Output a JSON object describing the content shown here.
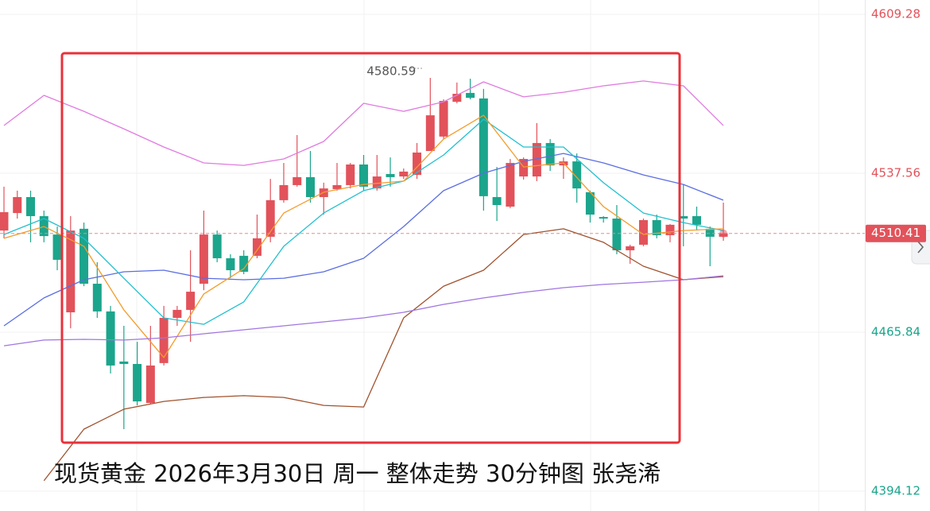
{
  "chart_data": {
    "type": "candlestick",
    "title": "现货黄金 2026年3月30日 周一 整体走势 30分钟图 张尧浠",
    "ylim": [
      4385.15,
      4615.73
    ],
    "yticks": [
      4609.28,
      4537.56,
      4465.84,
      4394.12
    ],
    "grid": true,
    "up_color": "#e2525a",
    "down_color": "#1ba58c",
    "last_price": 4510.41,
    "high_annotation": 4580.59,
    "high_annotation_index": 32,
    "candles": {
      "open": [
        4511.7,
        4519.6,
        4526.8,
        4518.2,
        4509.9,
        4474.8,
        4512.5,
        4487.7,
        4475.2,
        4452.6,
        4451.5,
        4433.9,
        4451.9,
        4472.3,
        4475.9,
        4487.7,
        4509.9,
        4499.2,
        4500.3,
        4500.3,
        4508.9,
        4525.4,
        4532.2,
        4535.8,
        4526.8,
        4530.4,
        4532.2,
        4541.5,
        4530.7,
        4537.2,
        4536.1,
        4536.8,
        4547.6,
        4554.1,
        4569.8,
        4573.8,
        4571.3,
        4526.8,
        4522.5,
        4536.1,
        4536.1,
        4551.2,
        4541.1,
        4542.9,
        4529.0,
        4517.8,
        4517.1,
        4502.8,
        4505.3,
        4516.4,
        4509.6,
        4518.2,
        4518.2,
        4512.5,
        4508.9
      ],
      "high": [
        4531.5,
        4529.7,
        4529.7,
        4520.7,
        4513.5,
        4518.2,
        4515.3,
        4497.4,
        4477.7,
        4468.7,
        4461.5,
        4468.7,
        4477.7,
        4477.7,
        4502.8,
        4520.7,
        4511.7,
        4501.0,
        4502.8,
        4518.9,
        4535.0,
        4542.2,
        4554.8,
        4547.6,
        4533.3,
        4542.2,
        4542.2,
        4545.8,
        4545.8,
        4544.7,
        4539.7,
        4551.2,
        4580.59,
        4570.9,
        4578.5,
        4580.2,
        4575.6,
        4540.4,
        4544.0,
        4544.7,
        4560.2,
        4553.0,
        4544.7,
        4546.5,
        4529.7,
        4518.2,
        4523.2,
        4505.3,
        4517.1,
        4518.9,
        4514.6,
        4532.5,
        4522.5,
        4513.5,
        4524.3
      ],
      "low": [
        4508.2,
        4517.1,
        4506.4,
        4506.4,
        4493.8,
        4467.6,
        4486.6,
        4472.3,
        4447.2,
        4422.1,
        4432.8,
        4433.6,
        4450.8,
        4468.7,
        4461.5,
        4484.8,
        4497.4,
        4490.2,
        4492.0,
        4499.2,
        4506.4,
        4524.3,
        4531.5,
        4524.3,
        4518.9,
        4529.7,
        4530.7,
        4529.7,
        4529.7,
        4531.5,
        4535.0,
        4535.0,
        4547.6,
        4553.0,
        4569.1,
        4570.9,
        4520.7,
        4516.0,
        4521.8,
        4534.7,
        4534.0,
        4538.6,
        4535.0,
        4524.3,
        4515.3,
        4515.3,
        4501.0,
        4496.7,
        4504.6,
        4508.2,
        4506.4,
        4504.6,
        4511.7,
        4495.6,
        4507.1
      ],
      "close": [
        4520.0,
        4526.8,
        4518.2,
        4509.2,
        4498.5,
        4511.7,
        4487.7,
        4475.2,
        4450.8,
        4451.5,
        4434.6,
        4450.8,
        4472.3,
        4475.9,
        4484.1,
        4509.9,
        4499.2,
        4493.8,
        4493.1,
        4508.2,
        4525.4,
        4532.2,
        4535.8,
        4526.8,
        4530.7,
        4532.2,
        4541.5,
        4531.5,
        4536.1,
        4535.8,
        4538.3,
        4546.9,
        4563.7,
        4570.2,
        4573.4,
        4571.6,
        4527.2,
        4523.2,
        4542.2,
        4544.0,
        4551.2,
        4541.1,
        4542.9,
        4530.7,
        4518.9,
        4517.1,
        4502.8,
        4504.6,
        4516.4,
        4509.6,
        4514.3,
        4517.1,
        4514.3,
        4508.9,
        4510.41
      ]
    },
    "line_x": [
      0,
      3,
      6,
      9,
      12,
      15,
      18,
      21,
      24,
      27,
      30,
      33,
      36,
      39,
      42,
      45,
      48,
      51,
      54
    ],
    "lines": [
      {
        "color": "#e07be0",
        "values": [
          4559.1,
          4572.7,
          4565.5,
          4557.6,
          4549.4,
          4542.2,
          4541.1,
          4544.0,
          4551.9,
          4569.1,
          4565.5,
          4569.8,
          4578.8,
          4572.0,
          4574.1,
          4577.0,
          4579.2,
          4577.0,
          4559.1
        ]
      },
      {
        "color": "#a0522d",
        "values": [
          null,
          4398.8,
          4422.1,
          4431.1,
          4434.6,
          4436.4,
          4437.2,
          4436.4,
          4432.8,
          4432.1,
          4472.3,
          4486.6,
          4493.8,
          4509.9,
          4512.5,
          4506.4,
          4495.6,
          4489.5,
          4490.9
        ]
      },
      {
        "color": "#5b6ee1",
        "values": [
          4468.7,
          4481.3,
          4489.5,
          4493.1,
          4493.8,
          4490.2,
          4489.5,
          4490.2,
          4493.1,
          4499.2,
          4513.5,
          4529.7,
          4537.6,
          4542.9,
          4546.5,
          4542.2,
          4536.8,
          4532.5,
          4525.4
        ]
      },
      {
        "color": "#22c0cf",
        "values": [
          4509.9,
          4517.1,
          4508.2,
          4490.2,
          4472.3,
          4469.4,
          4479.5,
          4504.6,
          4519.6,
          4529.7,
          4534.0,
          4545.8,
          4561.9,
          4549.4,
          4549.4,
          4533.3,
          4519.6,
          4515.3,
          4511.7
        ]
      },
      {
        "color": "#f39c2b",
        "values": [
          4508.2,
          4513.5,
          4504.6,
          4475.9,
          4454.4,
          4483.1,
          4494.5,
          4519.6,
          4529.0,
          4532.5,
          4534.0,
          4553.0,
          4563.7,
          4540.4,
          4542.2,
          4522.5,
          4509.9,
          4511.7,
          4512.5
        ]
      },
      {
        "color": "#a076e0",
        "values": [
          4459.7,
          4462.3,
          4462.6,
          4462.3,
          4463.3,
          4465.1,
          4466.9,
          4468.7,
          4470.5,
          4472.3,
          4474.8,
          4478.4,
          4481.3,
          4483.8,
          4485.9,
          4487.4,
          4488.4,
          4489.5,
          4491.3
        ]
      }
    ]
  }
}
